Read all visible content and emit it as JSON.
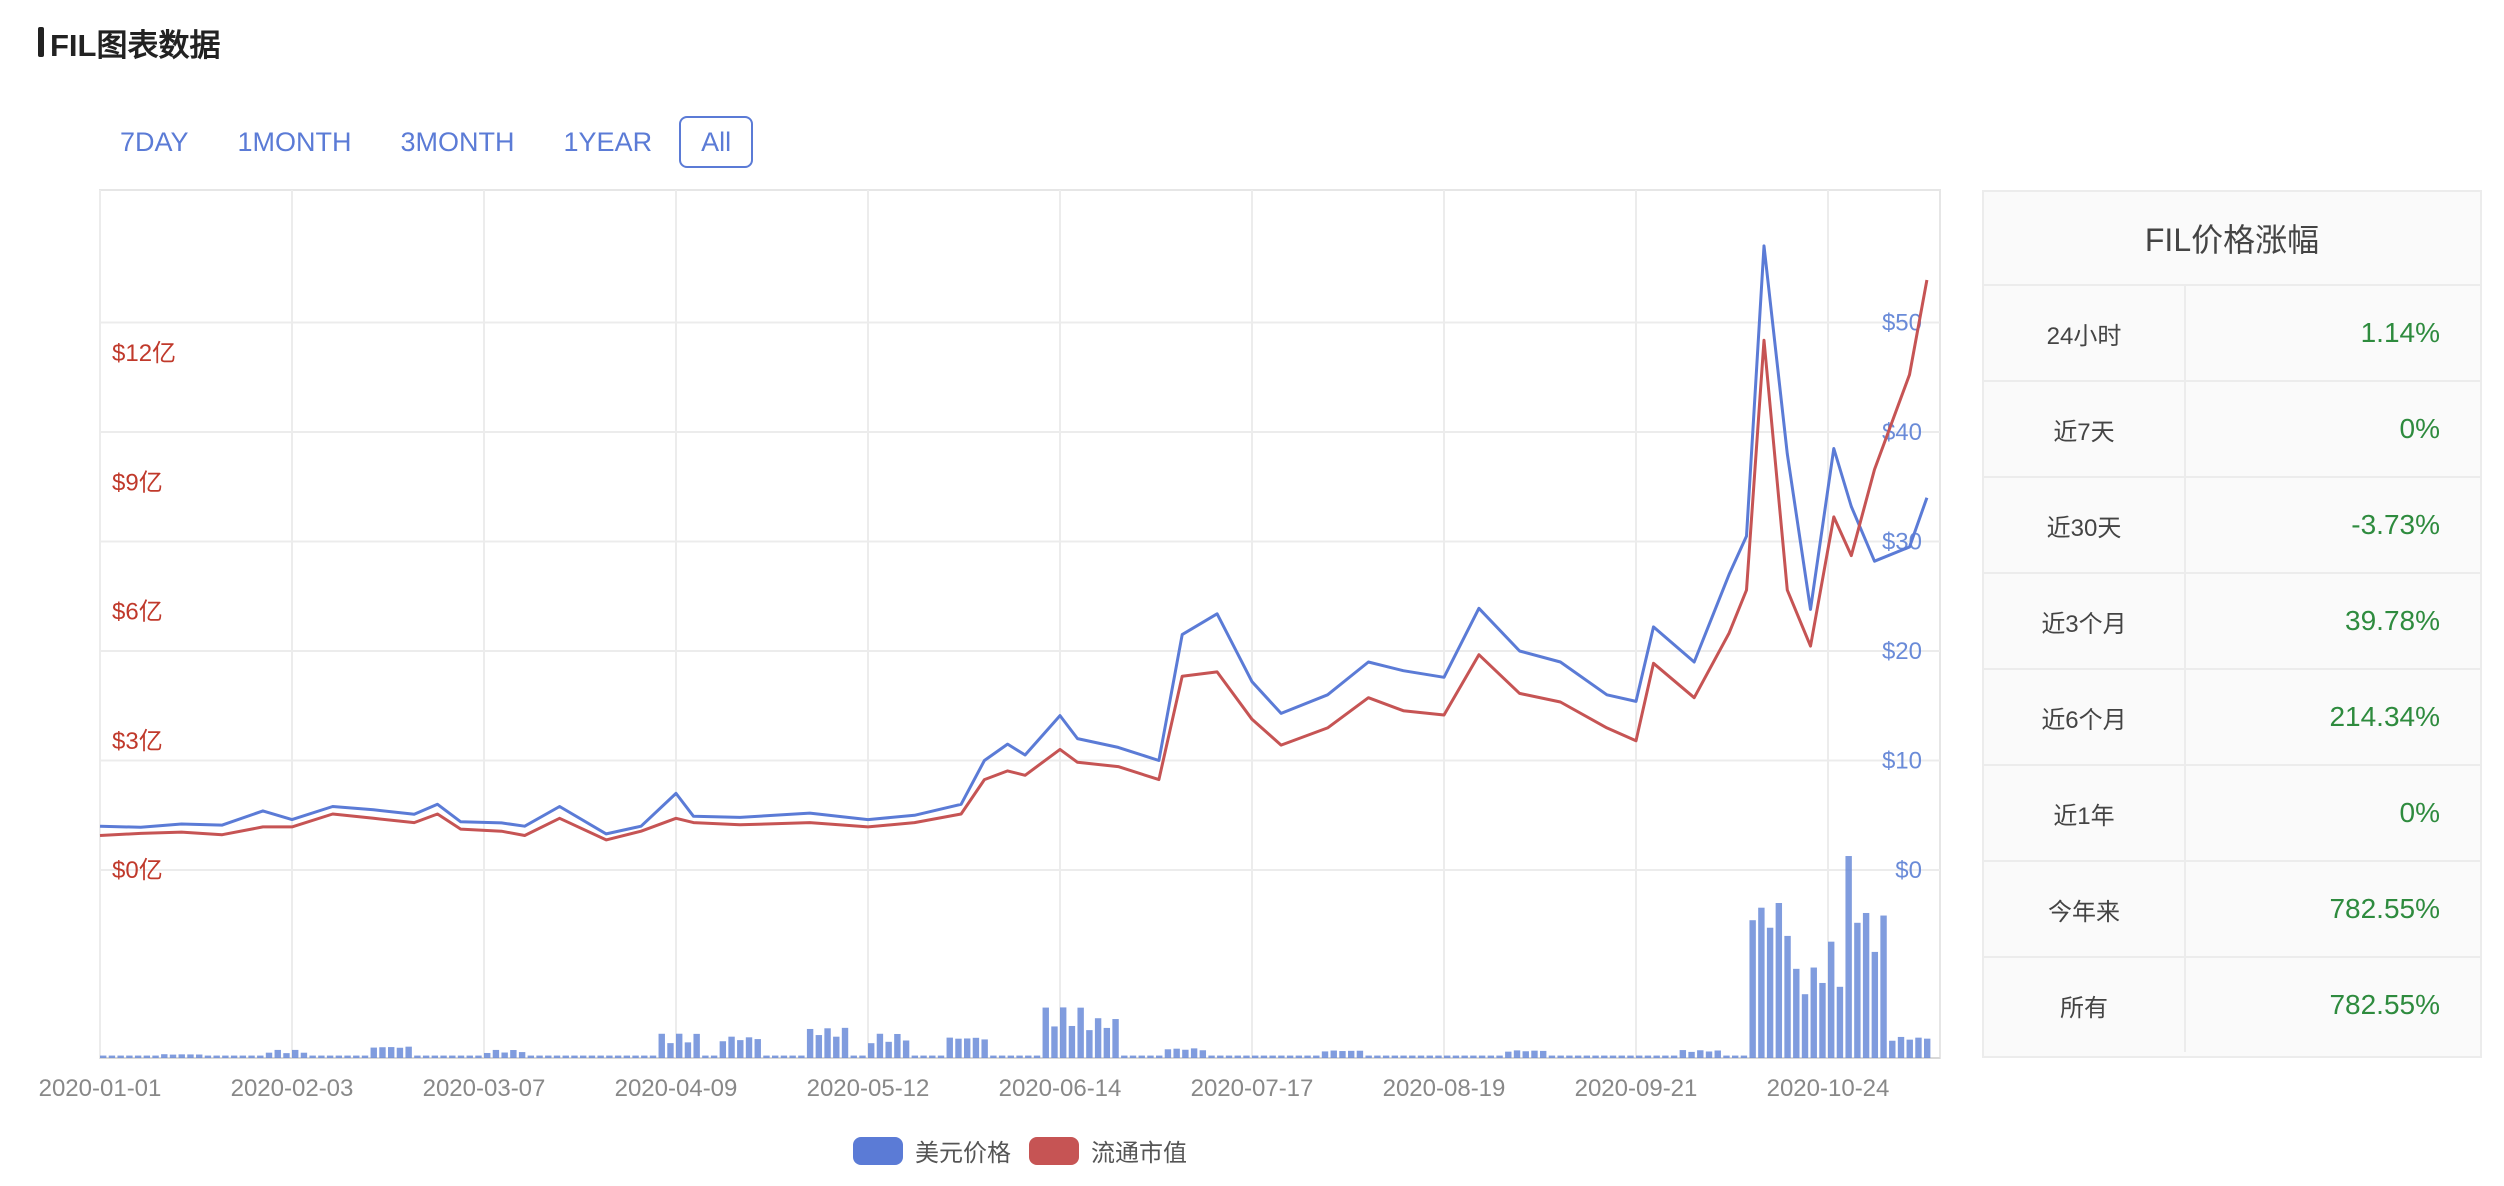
{
  "header": {
    "title": "FIL图表数据"
  },
  "tabs": [
    {
      "label": "7DAY",
      "active": false
    },
    {
      "label": "1MONTH",
      "active": false
    },
    {
      "label": "3MONTH",
      "active": false
    },
    {
      "label": "1YEAR",
      "active": false
    },
    {
      "label": "All",
      "active": true
    }
  ],
  "chart_data": {
    "type": "line",
    "x_type": "date",
    "x_tick_labels": [
      "2020-01-01",
      "2020-02-03",
      "2020-03-07",
      "2020-04-09",
      "2020-05-12",
      "2020-06-14",
      "2020-07-17",
      "2020-08-19",
      "2020-09-21",
      "2020-10-24"
    ],
    "x_range": [
      "2020-01-01",
      "2020-11-10"
    ],
    "y_left": {
      "ticks": [
        "$0亿",
        "$3亿",
        "$6亿",
        "$9亿",
        "$12亿"
      ],
      "values": [
        0,
        3,
        6,
        9,
        12
      ],
      "range": [
        0,
        15
      ],
      "color": "#c0392b"
    },
    "y_right": {
      "ticks": [
        "$0",
        "$10",
        "$20",
        "$30",
        "$40",
        "$50"
      ],
      "values": [
        0,
        10,
        20,
        30,
        40,
        50
      ],
      "range": [
        0,
        59
      ],
      "color": "#6a8bd8"
    },
    "grid": true,
    "legend_position": "bottom",
    "series": [
      {
        "name": "美元价格",
        "color": "#5b7bd6",
        "axis": "right",
        "points": [
          [
            "2020-01-01",
            4.0
          ],
          [
            "2020-01-08",
            3.9
          ],
          [
            "2020-01-15",
            4.2
          ],
          [
            "2020-01-22",
            4.1
          ],
          [
            "2020-01-29",
            5.4
          ],
          [
            "2020-02-03",
            4.6
          ],
          [
            "2020-02-10",
            5.8
          ],
          [
            "2020-02-17",
            5.5
          ],
          [
            "2020-02-24",
            5.1
          ],
          [
            "2020-02-28",
            6.0
          ],
          [
            "2020-03-03",
            4.4
          ],
          [
            "2020-03-10",
            4.3
          ],
          [
            "2020-03-14",
            4.0
          ],
          [
            "2020-03-20",
            5.8
          ],
          [
            "2020-03-28",
            3.3
          ],
          [
            "2020-04-03",
            4.0
          ],
          [
            "2020-04-09",
            7.0
          ],
          [
            "2020-04-12",
            4.9
          ],
          [
            "2020-04-20",
            4.8
          ],
          [
            "2020-05-02",
            5.2
          ],
          [
            "2020-05-12",
            4.6
          ],
          [
            "2020-05-20",
            5.0
          ],
          [
            "2020-05-28",
            6.0
          ],
          [
            "2020-06-01",
            10.0
          ],
          [
            "2020-06-05",
            11.5
          ],
          [
            "2020-06-08",
            10.5
          ],
          [
            "2020-06-14",
            14.1
          ],
          [
            "2020-06-17",
            12.0
          ],
          [
            "2020-06-24",
            11.2
          ],
          [
            "2020-07-01",
            10.0
          ],
          [
            "2020-07-05",
            21.5
          ],
          [
            "2020-07-11",
            23.4
          ],
          [
            "2020-07-17",
            17.2
          ],
          [
            "2020-07-22",
            14.3
          ],
          [
            "2020-07-30",
            16.0
          ],
          [
            "2020-08-06",
            19.0
          ],
          [
            "2020-08-12",
            18.2
          ],
          [
            "2020-08-19",
            17.6
          ],
          [
            "2020-08-25",
            23.9
          ],
          [
            "2020-09-01",
            20.0
          ],
          [
            "2020-09-08",
            19.0
          ],
          [
            "2020-09-16",
            16.0
          ],
          [
            "2020-09-21",
            15.4
          ],
          [
            "2020-09-24",
            22.2
          ],
          [
            "2020-10-01",
            19.0
          ],
          [
            "2020-10-07",
            27.0
          ],
          [
            "2020-10-10",
            30.5
          ],
          [
            "2020-10-13",
            57.0
          ],
          [
            "2020-10-17",
            38.0
          ],
          [
            "2020-10-21",
            23.8
          ],
          [
            "2020-10-25",
            38.5
          ],
          [
            "2020-10-28",
            33.2
          ],
          [
            "2020-11-01",
            28.2
          ],
          [
            "2020-11-07",
            29.5
          ],
          [
            "2020-11-10",
            34.0
          ]
        ]
      },
      {
        "name": "流通市值",
        "color": "#c65454",
        "axis": "left",
        "points": [
          [
            "2020-01-01",
            0.8
          ],
          [
            "2020-01-08",
            0.85
          ],
          [
            "2020-01-15",
            0.88
          ],
          [
            "2020-01-22",
            0.82
          ],
          [
            "2020-01-29",
            1.0
          ],
          [
            "2020-02-03",
            1.0
          ],
          [
            "2020-02-10",
            1.3
          ],
          [
            "2020-02-17",
            1.2
          ],
          [
            "2020-02-24",
            1.1
          ],
          [
            "2020-02-28",
            1.3
          ],
          [
            "2020-03-03",
            0.95
          ],
          [
            "2020-03-10",
            0.9
          ],
          [
            "2020-03-14",
            0.8
          ],
          [
            "2020-03-20",
            1.2
          ],
          [
            "2020-03-28",
            0.7
          ],
          [
            "2020-04-03",
            0.9
          ],
          [
            "2020-04-09",
            1.2
          ],
          [
            "2020-04-12",
            1.1
          ],
          [
            "2020-04-20",
            1.05
          ],
          [
            "2020-05-02",
            1.1
          ],
          [
            "2020-05-12",
            1.0
          ],
          [
            "2020-05-20",
            1.1
          ],
          [
            "2020-05-28",
            1.3
          ],
          [
            "2020-06-01",
            2.1
          ],
          [
            "2020-06-05",
            2.3
          ],
          [
            "2020-06-08",
            2.2
          ],
          [
            "2020-06-14",
            2.8
          ],
          [
            "2020-06-17",
            2.5
          ],
          [
            "2020-06-24",
            2.4
          ],
          [
            "2020-07-01",
            2.1
          ],
          [
            "2020-07-05",
            4.5
          ],
          [
            "2020-07-11",
            4.6
          ],
          [
            "2020-07-17",
            3.5
          ],
          [
            "2020-07-22",
            2.9
          ],
          [
            "2020-07-30",
            3.3
          ],
          [
            "2020-08-06",
            4.0
          ],
          [
            "2020-08-12",
            3.7
          ],
          [
            "2020-08-19",
            3.6
          ],
          [
            "2020-08-25",
            5.0
          ],
          [
            "2020-09-01",
            4.1
          ],
          [
            "2020-09-08",
            3.9
          ],
          [
            "2020-09-16",
            3.3
          ],
          [
            "2020-09-21",
            3.0
          ],
          [
            "2020-09-24",
            4.8
          ],
          [
            "2020-10-01",
            4.0
          ],
          [
            "2020-10-07",
            5.5
          ],
          [
            "2020-10-10",
            6.5
          ],
          [
            "2020-10-13",
            12.3
          ],
          [
            "2020-10-17",
            6.5
          ],
          [
            "2020-10-21",
            5.2
          ],
          [
            "2020-10-25",
            8.2
          ],
          [
            "2020-10-28",
            7.3
          ],
          [
            "2020-11-01",
            9.3
          ],
          [
            "2020-11-07",
            11.5
          ],
          [
            "2020-11-10",
            13.7
          ]
        ]
      }
    ],
    "volume_bars": [
      [
        "2020-01-15",
        0.04
      ],
      [
        "2020-02-01",
        0.08
      ],
      [
        "2020-02-20",
        0.12
      ],
      [
        "2020-03-10",
        0.08
      ],
      [
        "2020-04-09",
        0.24
      ],
      [
        "2020-04-20",
        0.22
      ],
      [
        "2020-05-05",
        0.3
      ],
      [
        "2020-05-15",
        0.24
      ],
      [
        "2020-05-28",
        0.22
      ],
      [
        "2020-06-14",
        0.5
      ],
      [
        "2020-06-20",
        0.4
      ],
      [
        "2020-07-05",
        0.1
      ],
      [
        "2020-08-01",
        0.08
      ],
      [
        "2020-09-01",
        0.08
      ],
      [
        "2020-10-01",
        0.08
      ],
      [
        "2020-10-13",
        1.6
      ],
      [
        "2020-10-18",
        0.9
      ],
      [
        "2020-10-22",
        1.15
      ],
      [
        "2020-10-25",
        2.0
      ],
      [
        "2020-10-30",
        1.45
      ],
      [
        "2020-11-04",
        0.22
      ],
      [
        "2020-11-10",
        0.22
      ]
    ]
  },
  "legend": [
    {
      "label": "美元价格",
      "color": "#5b7bd6"
    },
    {
      "label": "流通市值",
      "color": "#c65454"
    }
  ],
  "panel": {
    "title": "FIL价格涨幅",
    "rows": [
      {
        "label": "24小时",
        "value": "1.14%"
      },
      {
        "label": "近7天",
        "value": "0%"
      },
      {
        "label": "近30天",
        "value": "-3.73%"
      },
      {
        "label": "近3个月",
        "value": "39.78%"
      },
      {
        "label": "近6个月",
        "value": "214.34%"
      },
      {
        "label": "近1年",
        "value": "0%"
      },
      {
        "label": "今年来",
        "value": "782.55%"
      },
      {
        "label": "所有",
        "value": "782.55%"
      }
    ]
  }
}
